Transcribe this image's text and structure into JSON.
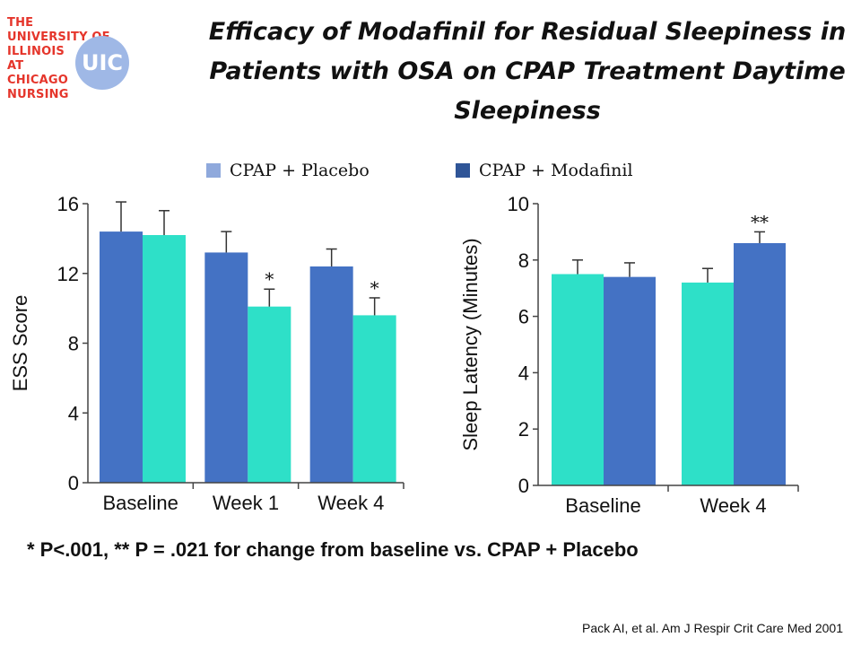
{
  "logo": {
    "lines": [
      "THE",
      "UNIVERSITY OF",
      "ILLINOIS",
      "AT",
      "CHICAGO",
      "NURSING"
    ],
    "badge": "UIC",
    "text_color": "#e5352b",
    "badge_color": "#9fb8e6"
  },
  "title": "Efficacy of Modafinil for Residual Sleepiness in Patients with OSA on CPAP Treatment Daytime Sleepiness",
  "legend": [
    {
      "label": "CPAP + Placebo",
      "color": "#8fa9dc"
    },
    {
      "label": "CPAP + Modafinil",
      "color": "#2f5597"
    }
  ],
  "colors": {
    "blue": "#4472c4",
    "teal": "#2ee0c8"
  },
  "chart_data": [
    {
      "type": "bar",
      "ylabel": "ESS Score",
      "xlabel": "",
      "ylim": [
        0,
        16
      ],
      "yticks": [
        0,
        4,
        8,
        12,
        16
      ],
      "categories": [
        "Baseline",
        "Week 1",
        "Week 4"
      ],
      "grid": false,
      "series": [
        {
          "color": "#4472c4",
          "values": [
            14.4,
            13.2,
            12.4
          ],
          "errors": [
            1.7,
            1.2,
            1.0
          ],
          "annotations": [
            "",
            "",
            ""
          ]
        },
        {
          "color": "#2ee0c8",
          "values": [
            14.2,
            10.1,
            9.6
          ],
          "errors": [
            1.4,
            1.0,
            1.0
          ],
          "annotations": [
            "",
            "*",
            "*"
          ]
        }
      ]
    },
    {
      "type": "bar",
      "ylabel": "Sleep Latency (Minutes)",
      "xlabel": "",
      "ylim": [
        0,
        10
      ],
      "yticks": [
        0,
        2,
        4,
        6,
        8,
        10
      ],
      "categories": [
        "Baseline",
        "Week 4"
      ],
      "grid": false,
      "series": [
        {
          "color": "#2ee0c8",
          "values": [
            7.5,
            7.2
          ],
          "errors": [
            0.5,
            0.5
          ],
          "annotations": [
            "",
            ""
          ]
        },
        {
          "color": "#4472c4",
          "values": [
            7.4,
            8.6
          ],
          "errors": [
            0.5,
            0.4
          ],
          "annotations": [
            "",
            "**"
          ]
        }
      ]
    }
  ],
  "footnote": "* P<.001, ** P = .021 for change from baseline vs. CPAP + Placebo",
  "citation": "Pack AI, et al. Am J Respir Crit Care Med 2001"
}
